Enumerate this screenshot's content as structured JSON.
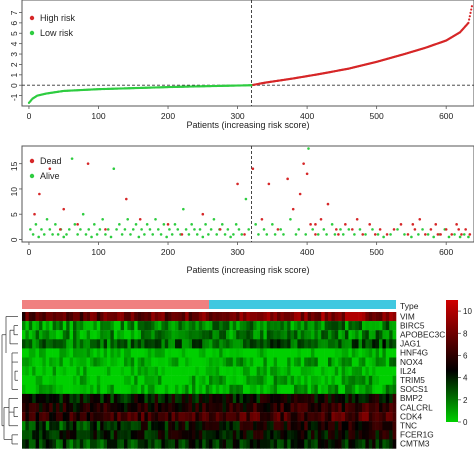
{
  "chart_data": [
    {
      "type": "line",
      "xlabel": "Patients (increasing risk score)",
      "ylabel": "",
      "xlim": [
        -10,
        640
      ],
      "ylim": [
        -2,
        8.2
      ],
      "xticks": [
        0,
        100,
        200,
        300,
        400,
        500,
        600
      ],
      "xtick_labels": [
        "0",
        "100",
        "200",
        "300",
        "400",
        "500",
        "600"
      ],
      "yticks": [
        -1,
        0,
        1,
        2,
        3,
        4,
        5,
        6,
        7
      ],
      "ytick_labels": [
        "-1",
        "0",
        "1",
        "2",
        "3",
        "4",
        "5",
        "6",
        "7"
      ],
      "cutoff_index": 320,
      "cutoff_value": 0,
      "legend_position": "top-left",
      "series": [
        {
          "name": "High risk",
          "color": "#d62728",
          "points": [
            [
              320,
              0
            ],
            [
              340,
              0.25
            ],
            [
              380,
              0.65
            ],
            [
              420,
              1.1
            ],
            [
              460,
              1.6
            ],
            [
              500,
              2.25
            ],
            [
              540,
              3.0
            ],
            [
              570,
              3.6
            ],
            [
              600,
              4.3
            ],
            [
              620,
              5.1
            ],
            [
              632,
              6.0
            ],
            [
              637,
              7.6
            ]
          ]
        },
        {
          "name": "Low risk",
          "color": "#2ecc40",
          "points": [
            [
              0,
              -1.7
            ],
            [
              5,
              -1.3
            ],
            [
              12,
              -1.0
            ],
            [
              25,
              -0.8
            ],
            [
              50,
              -0.55
            ],
            [
              100,
              -0.38
            ],
            [
              150,
              -0.28
            ],
            [
              200,
              -0.18
            ],
            [
              250,
              -0.1
            ],
            [
              300,
              -0.03
            ],
            [
              320,
              0
            ]
          ]
        }
      ]
    },
    {
      "type": "scatter",
      "xlabel": "Patients (increasing risk score)",
      "ylabel": "",
      "xlim": [
        -10,
        640
      ],
      "ylim": [
        -0.5,
        18.5
      ],
      "xticks": [
        0,
        100,
        200,
        300,
        400,
        500,
        600
      ],
      "xtick_labels": [
        "0",
        "100",
        "200",
        "300",
        "400",
        "500",
        "600"
      ],
      "yticks": [
        0,
        5,
        10,
        15
      ],
      "ytick_labels": [
        "0",
        "5",
        "10",
        "15"
      ],
      "cutoff_index": 320,
      "legend_position": "top-left",
      "series": [
        {
          "name": "Dead",
          "color": "#d62728",
          "points": [
            [
              8,
              5
            ],
            [
              15,
              9
            ],
            [
              30,
              14
            ],
            [
              45,
              2
            ],
            [
              50,
              6
            ],
            [
              70,
              3
            ],
            [
              85,
              15
            ],
            [
              110,
              2
            ],
            [
              140,
              8
            ],
            [
              160,
              4
            ],
            [
              200,
              3
            ],
            [
              220,
              1
            ],
            [
              250,
              5
            ],
            [
              275,
              2
            ],
            [
              300,
              11
            ],
            [
              310,
              1
            ],
            [
              322,
              14
            ],
            [
              335,
              4
            ],
            [
              345,
              11
            ],
            [
              358,
              2
            ],
            [
              372,
              12
            ],
            [
              380,
              6
            ],
            [
              390,
              9
            ],
            [
              395,
              15
            ],
            [
              400,
              13
            ],
            [
              405,
              3
            ],
            [
              412,
              1
            ],
            [
              420,
              4
            ],
            [
              430,
              7
            ],
            [
              445,
              1
            ],
            [
              455,
              3
            ],
            [
              465,
              2
            ],
            [
              480,
              1
            ],
            [
              490,
              3
            ],
            [
              505,
              2
            ],
            [
              515,
              1
            ],
            [
              525,
              2
            ],
            [
              535,
              3
            ],
            [
              545,
              1
            ],
            [
              555,
              2
            ],
            [
              562,
              4
            ],
            [
              570,
              1
            ],
            [
              578,
              2
            ],
            [
              585,
              3
            ],
            [
              592,
              1
            ],
            [
              600,
              2
            ],
            [
              608,
              1
            ],
            [
              615,
              3
            ],
            [
              622,
              1
            ],
            [
              628,
              2
            ],
            [
              634,
              1
            ],
            [
              412,
              3
            ],
            [
              442,
              2
            ],
            [
              472,
              4
            ],
            [
              498,
              1
            ],
            [
              552,
              3
            ],
            [
              588,
              1
            ],
            [
              618,
              2
            ]
          ]
        },
        {
          "name": "Alive",
          "color": "#2ecc40",
          "points": [
            [
              2,
              2
            ],
            [
              6,
              1
            ],
            [
              10,
              3
            ],
            [
              14,
              0.5
            ],
            [
              18,
              2
            ],
            [
              22,
              1
            ],
            [
              26,
              4
            ],
            [
              30,
              2
            ],
            [
              34,
              1
            ],
            [
              38,
              3
            ],
            [
              42,
              1
            ],
            [
              46,
              2
            ],
            [
              50,
              0.5
            ],
            [
              54,
              1
            ],
            [
              58,
              2
            ],
            [
              62,
              16
            ],
            [
              66,
              3
            ],
            [
              70,
              1
            ],
            [
              74,
              2
            ],
            [
              78,
              5
            ],
            [
              82,
              1
            ],
            [
              86,
              2
            ],
            [
              90,
              0.5
            ],
            [
              94,
              3
            ],
            [
              98,
              1
            ],
            [
              102,
              2
            ],
            [
              106,
              4
            ],
            [
              110,
              1
            ],
            [
              114,
              2
            ],
            [
              118,
              0.5
            ],
            [
              122,
              14
            ],
            [
              126,
              2
            ],
            [
              130,
              3
            ],
            [
              134,
              1
            ],
            [
              138,
              2
            ],
            [
              142,
              4
            ],
            [
              146,
              1
            ],
            [
              150,
              2
            ],
            [
              154,
              3
            ],
            [
              158,
              0.5
            ],
            [
              162,
              2
            ],
            [
              166,
              1
            ],
            [
              170,
              3
            ],
            [
              174,
              2
            ],
            [
              178,
              1
            ],
            [
              182,
              4
            ],
            [
              186,
              2
            ],
            [
              190,
              1
            ],
            [
              194,
              3
            ],
            [
              198,
              0.5
            ],
            [
              202,
              2
            ],
            [
              206,
              1
            ],
            [
              210,
              3
            ],
            [
              214,
              2
            ],
            [
              218,
              1
            ],
            [
              222,
              6
            ],
            [
              226,
              2
            ],
            [
              230,
              1
            ],
            [
              234,
              3
            ],
            [
              238,
              2
            ],
            [
              242,
              1
            ],
            [
              246,
              2
            ],
            [
              250,
              0.5
            ],
            [
              254,
              3
            ],
            [
              258,
              1
            ],
            [
              262,
              2
            ],
            [
              266,
              4
            ],
            [
              270,
              1
            ],
            [
              274,
              2
            ],
            [
              278,
              3
            ],
            [
              282,
              1
            ],
            [
              286,
              2
            ],
            [
              290,
              0.5
            ],
            [
              294,
              1
            ],
            [
              298,
              3
            ],
            [
              302,
              2
            ],
            [
              306,
              1
            ],
            [
              312,
              8
            ],
            [
              316,
              2
            ],
            [
              326,
              3
            ],
            [
              330,
              1
            ],
            [
              338,
              2
            ],
            [
              342,
              1
            ],
            [
              350,
              3
            ],
            [
              354,
              1
            ],
            [
              362,
              2
            ],
            [
              366,
              1
            ],
            [
              376,
              4
            ],
            [
              384,
              1
            ],
            [
              388,
              2
            ],
            [
              398,
              1
            ],
            [
              402,
              18
            ],
            [
              408,
              2
            ],
            [
              416,
              1
            ],
            [
              424,
              2
            ],
            [
              428,
              1
            ],
            [
              436,
              3
            ],
            [
              440,
              1
            ],
            [
              448,
              2
            ],
            [
              452,
              1
            ],
            [
              460,
              2
            ],
            [
              468,
              1
            ],
            [
              476,
              2
            ],
            [
              484,
              1
            ],
            [
              494,
              2
            ],
            [
              502,
              1
            ],
            [
              510,
              0.5
            ],
            [
              520,
              1
            ],
            [
              530,
              2
            ],
            [
              540,
              1
            ],
            [
              550,
              0.5
            ],
            [
              560,
              1
            ],
            [
              566,
              2
            ],
            [
              574,
              1
            ],
            [
              582,
              0.5
            ],
            [
              590,
              1
            ],
            [
              598,
              2
            ],
            [
              604,
              0.5
            ],
            [
              612,
              1
            ],
            [
              620,
              0.5
            ],
            [
              626,
              1
            ],
            [
              632,
              0.5
            ]
          ]
        }
      ]
    },
    {
      "type": "heatmap",
      "type_row_label": "Type",
      "groups": [
        {
          "name": "Low risk",
          "color": "#f08080",
          "fraction": 0.5
        },
        {
          "name": "High risk",
          "color": "#40c8e0",
          "fraction": 0.5
        }
      ],
      "genes": [
        "VIM",
        "BIRC5",
        "APOBEC3C",
        "JAG1",
        "HNF4G",
        "NOX4",
        "IL24",
        "TRIM5",
        "SOCS1",
        "BMP2",
        "CALCRL",
        "CDK4",
        "TNC",
        "FCER1G",
        "CMTM3"
      ],
      "gene_mean_expression": {
        "low_risk": [
          7,
          1,
          1,
          2,
          0,
          0,
          0,
          0,
          0,
          4,
          5,
          6,
          3,
          4,
          3
        ],
        "high_risk": [
          9,
          2,
          2,
          3,
          0,
          1,
          0,
          1,
          1,
          5,
          6,
          7,
          6,
          5,
          4
        ]
      },
      "colorbar": {
        "min": 0,
        "max": 11,
        "ticks": [
          0,
          2,
          4,
          6,
          8,
          10
        ],
        "tick_labels": [
          "0",
          "2",
          "4",
          "6",
          "8",
          "10"
        ],
        "colors": [
          "#00d000",
          "#000000",
          "#d00000"
        ]
      }
    }
  ]
}
